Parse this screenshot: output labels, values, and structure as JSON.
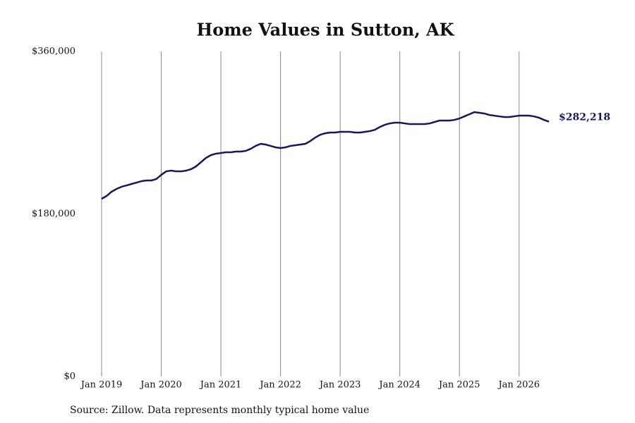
{
  "chart_data": {
    "type": "line",
    "title": "Home Values in Sutton, AK",
    "source": "Source: Zillow. Data represents monthly typical home value",
    "x": [
      "2019-01",
      "2019-02",
      "2019-03",
      "2019-04",
      "2019-05",
      "2019-06",
      "2019-07",
      "2019-08",
      "2019-09",
      "2019-10",
      "2019-11",
      "2019-12",
      "2020-01",
      "2020-02",
      "2020-03",
      "2020-04",
      "2020-05",
      "2020-06",
      "2020-07",
      "2020-08",
      "2020-09",
      "2020-10",
      "2020-11",
      "2020-12",
      "2021-01",
      "2021-02",
      "2021-03",
      "2021-04",
      "2021-05",
      "2021-06",
      "2021-07",
      "2021-08",
      "2021-09",
      "2021-10",
      "2021-11",
      "2021-12",
      "2022-01",
      "2022-02",
      "2022-03",
      "2022-04",
      "2022-05",
      "2022-06",
      "2022-07",
      "2022-08",
      "2022-09",
      "2022-10",
      "2022-11",
      "2022-12",
      "2023-01",
      "2023-02",
      "2023-03",
      "2023-04",
      "2023-05",
      "2023-06",
      "2023-07",
      "2023-08",
      "2023-09",
      "2023-10",
      "2023-11",
      "2023-12",
      "2024-01",
      "2024-02",
      "2024-03",
      "2024-04",
      "2024-05",
      "2024-06",
      "2024-07",
      "2024-08",
      "2024-09",
      "2024-10",
      "2024-11",
      "2024-12",
      "2025-01",
      "2025-02",
      "2025-03",
      "2025-04",
      "2025-05",
      "2025-06",
      "2025-07",
      "2025-08",
      "2025-09",
      "2025-10",
      "2025-11",
      "2025-12",
      "2026-01",
      "2026-02",
      "2026-03",
      "2026-04",
      "2026-05",
      "2026-06",
      "2026-07"
    ],
    "series": [
      {
        "color": "#17175e",
        "values": [
          196800,
          199900,
          204600,
          207700,
          210100,
          211600,
          213200,
          214700,
          216300,
          217100,
          217100,
          218700,
          223300,
          227200,
          228000,
          227200,
          227200,
          228000,
          229600,
          232700,
          237400,
          242100,
          245200,
          246800,
          247500,
          248300,
          248300,
          249100,
          249100,
          249900,
          252200,
          255400,
          257700,
          256900,
          255400,
          253800,
          253000,
          253800,
          255400,
          256100,
          256900,
          257700,
          260800,
          264700,
          267800,
          269400,
          270200,
          270200,
          271000,
          271000,
          271000,
          270200,
          270200,
          271000,
          271800,
          273300,
          276400,
          278800,
          280300,
          281100,
          281100,
          280300,
          279600,
          279600,
          279600,
          279600,
          280300,
          281900,
          283500,
          283500,
          283500,
          284200,
          285800,
          288100,
          290500,
          292800,
          292100,
          291300,
          289700,
          288900,
          288100,
          287400,
          287400,
          288100,
          288900,
          288900,
          288900,
          288100,
          286600,
          284200,
          282218
        ],
        "last_value_label": "$282,218"
      }
    ],
    "xlim": [
      "2019-01",
      "2026-07"
    ],
    "xticks": [
      {
        "value": "2019-01",
        "label": "Jan 2019"
      },
      {
        "value": "2020-01",
        "label": "Jan 2020"
      },
      {
        "value": "2021-01",
        "label": "Jan 2021"
      },
      {
        "value": "2022-01",
        "label": "Jan 2022"
      },
      {
        "value": "2023-01",
        "label": "Jan 2023"
      },
      {
        "value": "2024-01",
        "label": "Jan 2024"
      },
      {
        "value": "2025-01",
        "label": "Jan 2025"
      },
      {
        "value": "2026-01",
        "label": "Jan 2026"
      }
    ],
    "ylim": [
      0,
      360000
    ],
    "yticks": [
      {
        "value": 0,
        "label": "$0"
      },
      {
        "value": 180000,
        "label": "$180,000"
      },
      {
        "value": 360000,
        "label": "$360,000"
      }
    ],
    "grid": "x"
  }
}
